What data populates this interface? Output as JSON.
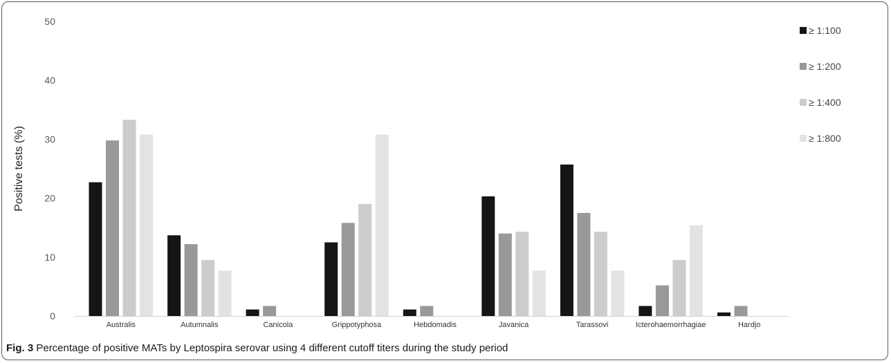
{
  "caption": {
    "label": "Fig. 3",
    "text": "Percentage of positive MATs by Leptospira serovar using 4 different cutoff titers during the study period"
  },
  "chart_data": {
    "type": "bar",
    "title": "",
    "xlabel": "",
    "ylabel": "Positive tests (%)",
    "ylim": [
      0,
      50
    ],
    "yticks": [
      0,
      10,
      20,
      30,
      40,
      50
    ],
    "grid": false,
    "legend_position": "right",
    "categories": [
      "Australis",
      "Autumnalis",
      "Canicola",
      "Grippotyphosa",
      "Hebdomadis",
      "Javanica",
      "Tarassovi",
      "Icterohaemorrhagiae",
      "Hardjo"
    ],
    "series": [
      {
        "name": "≥ 1:100",
        "color": "#151515",
        "values": [
          22.7,
          13.7,
          1.1,
          12.5,
          1.1,
          20.3,
          25.7,
          1.7,
          0.6
        ]
      },
      {
        "name": "≥ 1:200",
        "color": "#999999",
        "values": [
          29.8,
          12.2,
          1.7,
          15.8,
          1.7,
          14.0,
          17.5,
          5.2,
          1.7
        ]
      },
      {
        "name": "≥ 1:400",
        "color": "#cccccc",
        "values": [
          33.3,
          9.5,
          0,
          19.0,
          0,
          14.3,
          14.3,
          9.5,
          0
        ]
      },
      {
        "name": "≥ 1:800",
        "color": "#e3e3e3",
        "values": [
          30.8,
          7.7,
          0,
          30.8,
          0,
          7.7,
          7.7,
          15.4,
          0
        ]
      }
    ]
  }
}
